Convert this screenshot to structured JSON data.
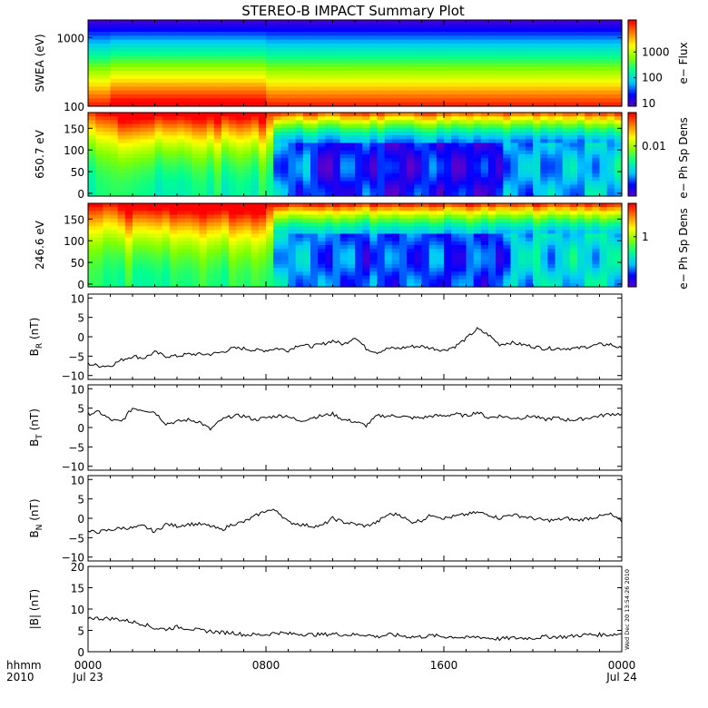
{
  "title": "STEREO-B IMPACT Summary Plot",
  "footer": {
    "left_top": "hhmm",
    "left_bottom": "2010",
    "stamp": "Wed Dec 20 13:54:26 2010"
  },
  "colors": {
    "line": "#000000",
    "axis": "#000000",
    "background": "#ffffff",
    "colormap": [
      "#6000c8",
      "#0000ff",
      "#00c8ff",
      "#00ff90",
      "#80ff00",
      "#ffff00",
      "#ff8000",
      "#ff0000"
    ]
  },
  "chart_data": [
    {
      "type": "heatmap",
      "name": "swea",
      "ylabel": "SWEA (eV)",
      "yscale": "log",
      "ylim": [
        100,
        1800
      ],
      "yticks": [
        "100",
        "1000"
      ],
      "colorbar": {
        "label": "e− Flux",
        "ticks": [
          "10",
          "100",
          "1000"
        ],
        "scale": "log"
      },
      "x": {
        "start_hour": 0,
        "end_hour": 24
      }
    },
    {
      "type": "heatmap",
      "name": "pad650",
      "ylabel": "650.7 eV",
      "ylim": [
        0,
        180
      ],
      "yticks": [
        "0",
        "50",
        "100",
        "150"
      ],
      "colorbar": {
        "label": "e− Ph Sp Dens",
        "ticks": [
          "0.01"
        ],
        "scale": "log"
      },
      "x": {
        "start_hour": 0,
        "end_hour": 24
      }
    },
    {
      "type": "heatmap",
      "name": "pad246",
      "ylabel": "246.6 eV",
      "ylim": [
        0,
        180
      ],
      "yticks": [
        "0",
        "50",
        "100",
        "150"
      ],
      "colorbar": {
        "label": "e− Ph Sp Dens",
        "ticks": [
          "1"
        ],
        "scale": "log"
      },
      "x": {
        "start_hour": 0,
        "end_hour": 24
      }
    },
    {
      "type": "line",
      "name": "br",
      "ylabel": "B",
      "ylabel_sub": "R",
      "ylabel_unit": " (nT)",
      "ylim": [
        -11,
        11
      ],
      "yticks": [
        {
          "v": 10,
          "t": "10"
        },
        {
          "v": 5,
          "t": "5"
        },
        {
          "v": 0,
          "t": "0"
        },
        {
          "v": -5,
          "t": "−5"
        },
        {
          "v": -10,
          "t": "−10"
        }
      ],
      "x": [
        0,
        0.5,
        1,
        1.5,
        2,
        2.5,
        3,
        3.5,
        4,
        4.5,
        5,
        5.5,
        6,
        6.5,
        7,
        7.5,
        8,
        8.5,
        9,
        9.5,
        10,
        10.5,
        11,
        11.5,
        12,
        12.5,
        13,
        13.5,
        14,
        14.5,
        15,
        15.5,
        16,
        16.5,
        17,
        17.5,
        18,
        18.5,
        19,
        19.5,
        20,
        20.5,
        21,
        21.5,
        22,
        22.5,
        23,
        23.5,
        24
      ],
      "y": [
        -7,
        -7.5,
        -7.5,
        -6,
        -5,
        -5.5,
        -4,
        -5,
        -5,
        -4.5,
        -4.5,
        -4.5,
        -4,
        -3,
        -3,
        -3.5,
        -3.5,
        -3,
        -3.5,
        -2,
        -2.5,
        -2,
        -1,
        -2,
        0,
        -3,
        -4,
        -3,
        -3,
        -2.5,
        -2.5,
        -3,
        -3.5,
        -2.5,
        -0.5,
        2,
        0.5,
        -2,
        -1.5,
        -2,
        -2.5,
        -3,
        -3,
        -3,
        -3,
        -2.5,
        -2,
        -2,
        -3
      ]
    },
    {
      "type": "line",
      "name": "bt",
      "ylabel": "B",
      "ylabel_sub": "T",
      "ylabel_unit": " (nT)",
      "ylim": [
        -11,
        11
      ],
      "yticks": [
        {
          "v": 10,
          "t": "10"
        },
        {
          "v": 5,
          "t": "5"
        },
        {
          "v": 0,
          "t": "0"
        },
        {
          "v": -5,
          "t": "−5"
        },
        {
          "v": -10,
          "t": "−10"
        }
      ],
      "x": [
        0,
        0.5,
        1,
        1.5,
        2,
        2.5,
        3,
        3.5,
        4,
        4.5,
        5,
        5.5,
        6,
        6.5,
        7,
        7.5,
        8,
        8.5,
        9,
        9.5,
        10,
        10.5,
        11,
        11.5,
        12,
        12.5,
        13,
        13.5,
        14,
        14.5,
        15,
        15.5,
        16,
        16.5,
        17,
        17.5,
        18,
        18.5,
        19,
        19.5,
        20,
        20.5,
        21,
        21.5,
        22,
        22.5,
        23,
        23.5,
        24
      ],
      "y": [
        3.5,
        4,
        2,
        1.5,
        5,
        4.5,
        4,
        1,
        1.5,
        2,
        1.5,
        -0.5,
        2,
        3,
        3,
        2,
        2.5,
        3,
        3,
        1.5,
        2.5,
        3,
        3.5,
        2,
        1.5,
        0.5,
        3,
        3,
        3,
        2.5,
        2.5,
        3,
        3,
        3.5,
        3,
        4,
        2.5,
        3,
        2.5,
        2.5,
        3,
        2,
        2.5,
        2,
        2,
        2.5,
        3,
        3.5,
        3.5
      ]
    },
    {
      "type": "line",
      "name": "bn",
      "ylabel": "B",
      "ylabel_sub": "N",
      "ylabel_unit": " (nT)",
      "ylim": [
        -11,
        11
      ],
      "yticks": [
        {
          "v": 10,
          "t": "10"
        },
        {
          "v": 5,
          "t": "5"
        },
        {
          "v": 0,
          "t": "0"
        },
        {
          "v": -5,
          "t": "−5"
        },
        {
          "v": -10,
          "t": "−10"
        }
      ],
      "x": [
        0,
        0.5,
        1,
        1.5,
        2,
        2.5,
        3,
        3.5,
        4,
        4.5,
        5,
        5.5,
        6,
        6.5,
        7,
        7.5,
        8,
        8.5,
        9,
        9.5,
        10,
        10.5,
        11,
        11.5,
        12,
        12.5,
        13,
        13.5,
        14,
        14.5,
        15,
        15.5,
        16,
        16.5,
        17,
        17.5,
        18,
        18.5,
        19,
        19.5,
        20,
        20.5,
        21,
        21.5,
        22,
        22.5,
        23,
        23.5,
        24
      ],
      "y": [
        -3.5,
        -3.5,
        -3,
        -2.5,
        -2.5,
        -2,
        -3.5,
        -1.5,
        -2,
        -1.5,
        -1.5,
        -2,
        -3,
        -1.5,
        -1,
        0.5,
        2,
        2,
        -1,
        -1.5,
        -2,
        -2,
        0,
        -1,
        -1.5,
        -2,
        -1,
        1,
        1,
        -1,
        -0.5,
        1,
        0,
        0.5,
        1,
        1.5,
        1,
        0,
        1,
        0.5,
        0,
        -0.5,
        -0.5,
        0,
        -0.5,
        0,
        0.5,
        1,
        -1
      ]
    },
    {
      "type": "line",
      "name": "bmag",
      "ylabel": "|B| (nT)",
      "ylim": [
        0,
        20
      ],
      "yticks": [
        {
          "v": 20,
          "t": "20"
        },
        {
          "v": 15,
          "t": "15"
        },
        {
          "v": 10,
          "t": "10"
        },
        {
          "v": 5,
          "t": "5"
        },
        {
          "v": 0,
          "t": "0"
        }
      ],
      "x": [
        0,
        0.5,
        1,
        1.5,
        2,
        2.5,
        3,
        3.5,
        4,
        4.5,
        5,
        5.5,
        6,
        6.5,
        7,
        7.5,
        8,
        8.5,
        9,
        9.5,
        10,
        10.5,
        11,
        11.5,
        12,
        12.5,
        13,
        13.5,
        14,
        14.5,
        15,
        15.5,
        16,
        16.5,
        17,
        17.5,
        18,
        18.5,
        19,
        19.5,
        20,
        20.5,
        21,
        21.5,
        22,
        22.5,
        23,
        23.5,
        24
      ],
      "y": [
        8,
        7.8,
        7.8,
        7.5,
        7,
        6.5,
        5.5,
        5.3,
        5.8,
        5.5,
        5,
        4.8,
        4.5,
        4.5,
        4,
        4,
        4,
        4.5,
        4.2,
        4.2,
        4,
        4,
        4.2,
        4,
        4,
        4,
        3.5,
        4,
        3.8,
        3.5,
        3.5,
        3.8,
        3.5,
        3.5,
        3.2,
        3.5,
        3.2,
        3,
        3.2,
        3.2,
        3.2,
        3.5,
        3.5,
        3.5,
        3.8,
        4,
        4,
        4,
        4.2
      ]
    }
  ],
  "xaxis": {
    "ticks": [
      {
        "hour": 0,
        "label": "0000",
        "sublabel": "Jul 23"
      },
      {
        "hour": 8,
        "label": "0800",
        "sublabel": ""
      },
      {
        "hour": 16,
        "label": "1600",
        "sublabel": ""
      },
      {
        "hour": 24,
        "label": "0000",
        "sublabel": "Jul 24"
      }
    ]
  }
}
